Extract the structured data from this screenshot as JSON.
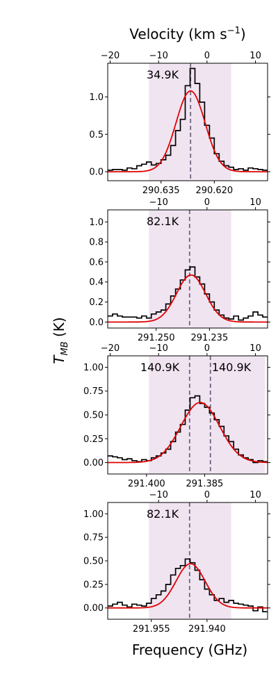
{
  "figure": {
    "top_axis_label": "Velocity (km s",
    "top_axis_sup": "−1",
    "top_axis_close": ")",
    "ylabel_main": "T",
    "ylabel_sub": "MB",
    "ylabel_unit": " (K)",
    "xlabel": "Frequency (GHz)"
  },
  "colors": {
    "shade": "#f1e4f1",
    "histogram": "#000000",
    "fit": "#e00000",
    "center_line": "#6e6680"
  },
  "chart_data": [
    {
      "type": "line",
      "panel": 1,
      "ylim": [
        -0.12,
        1.45
      ],
      "yticks": [
        0.0,
        0.5,
        1.0
      ],
      "ytick_labels": [
        "0.0",
        "0.5",
        "1.0"
      ],
      "vel_ticks": [
        -20,
        -10,
        0,
        10
      ],
      "vel_tick_labels": [
        "−20",
        "−10",
        "0",
        "10"
      ],
      "freq_ticks": [
        290.635,
        290.62
      ],
      "freq_tick_labels": [
        "290.635",
        "290.620"
      ],
      "shade_vel": [
        -12,
        5
      ],
      "center_vel": [
        -3.4
      ],
      "annotations": [
        "34.9K"
      ],
      "fit": {
        "amplitude": 1.08,
        "center": -3.4,
        "sigma": 3.0
      },
      "spectrum": {
        "vel": [
          -20,
          -19,
          -18,
          -17,
          -16,
          -15,
          -14,
          -13,
          -12,
          -11,
          -10,
          -9,
          -8,
          -7,
          -6,
          -5,
          -4,
          -3,
          -2,
          -1,
          0,
          1,
          2,
          3,
          4,
          5,
          6,
          7,
          8,
          9,
          10,
          11,
          12
        ],
        "T": [
          0.02,
          0.03,
          0.03,
          0.02,
          0.05,
          0.04,
          0.08,
          0.1,
          0.13,
          0.09,
          0.11,
          0.16,
          0.22,
          0.35,
          0.55,
          0.7,
          1.15,
          1.38,
          1.18,
          0.93,
          0.62,
          0.45,
          0.24,
          0.14,
          0.08,
          0.06,
          0.03,
          0.04,
          0.02,
          0.05,
          0.04,
          0.03,
          0.02
        ]
      }
    },
    {
      "type": "line",
      "panel": 2,
      "ylim": [
        -0.06,
        1.12
      ],
      "yticks": [
        0.0,
        0.2,
        0.4,
        0.6,
        0.8,
        1.0
      ],
      "ytick_labels": [
        "0.0",
        "0.2",
        "0.4",
        "0.6",
        "0.8",
        "1.0"
      ],
      "vel_ticks": [
        -10,
        0,
        10
      ],
      "vel_tick_labels": [
        "−10",
        "0",
        "10"
      ],
      "freq_ticks": [
        291.25,
        291.235
      ],
      "freq_tick_labels": [
        "291.250",
        "291.235"
      ],
      "shade_vel": [
        -12,
        5
      ],
      "center_vel": [
        -3.6
      ],
      "annotations": [
        "82.1K"
      ],
      "fit": {
        "amplitude": 0.47,
        "center": -3.3,
        "sigma": 3.0
      },
      "spectrum": {
        "vel": [
          -20,
          -19,
          -18,
          -17,
          -16,
          -15,
          -14,
          -13,
          -12,
          -11,
          -10,
          -9,
          -8,
          -7,
          -6,
          -5,
          -4,
          -3,
          -2,
          -1,
          0,
          1,
          2,
          3,
          4,
          5,
          6,
          7,
          8,
          9,
          10,
          11,
          12
        ],
        "T": [
          0.06,
          0.08,
          0.06,
          0.05,
          0.05,
          0.05,
          0.04,
          0.06,
          0.04,
          0.08,
          0.1,
          0.12,
          0.18,
          0.26,
          0.33,
          0.42,
          0.52,
          0.55,
          0.45,
          0.38,
          0.28,
          0.2,
          0.12,
          0.07,
          0.04,
          0.03,
          0.06,
          0.02,
          0.04,
          0.06,
          0.1,
          0.07,
          0.05
        ]
      }
    },
    {
      "type": "line",
      "panel": 3,
      "ylim": [
        -0.12,
        1.12
      ],
      "yticks": [
        0.0,
        0.25,
        0.5,
        0.75,
        1.0
      ],
      "ytick_labels": [
        "0.00",
        "0.25",
        "0.50",
        "0.75",
        "1.00"
      ],
      "vel_ticks": [
        -20,
        -10,
        0,
        10
      ],
      "vel_tick_labels": [
        "−20",
        "−10",
        "0",
        "10"
      ],
      "freq_ticks": [
        291.4,
        291.385
      ],
      "freq_tick_labels": [
        "291.400",
        "291.385"
      ],
      "shade_vel": [
        -12,
        12
      ],
      "center_vel": [
        -3.6,
        0.7
      ],
      "annotations": [
        "140.9K",
        "140.9K"
      ],
      "fit": {
        "amplitude": 0.63,
        "center": -1.4,
        "sigma": 4.0
      },
      "spectrum": {
        "vel": [
          -20,
          -19,
          -18,
          -17,
          -16,
          -15,
          -14,
          -13,
          -12,
          -11,
          -10,
          -9,
          -8,
          -7,
          -6,
          -5,
          -4,
          -3,
          -2,
          -1,
          0,
          1,
          2,
          3,
          4,
          5,
          6,
          7,
          8,
          9,
          10,
          11,
          12
        ],
        "T": [
          0.07,
          0.06,
          0.05,
          0.03,
          0.04,
          0.02,
          0.01,
          0.03,
          0.02,
          0.05,
          0.07,
          0.1,
          0.14,
          0.22,
          0.32,
          0.4,
          0.55,
          0.68,
          0.7,
          0.62,
          0.58,
          0.52,
          0.45,
          0.38,
          0.28,
          0.22,
          0.14,
          0.08,
          0.05,
          0.03,
          0.0,
          0.02,
          0.01
        ]
      }
    },
    {
      "type": "line",
      "panel": 4,
      "ylim": [
        -0.12,
        1.12
      ],
      "yticks": [
        0.0,
        0.25,
        0.5,
        0.75,
        1.0
      ],
      "ytick_labels": [
        "0.00",
        "0.25",
        "0.50",
        "0.75",
        "1.00"
      ],
      "vel_ticks": [
        -10,
        0,
        10
      ],
      "vel_tick_labels": [
        "−10",
        "0",
        "10"
      ],
      "freq_ticks": [
        291.955,
        291.94
      ],
      "freq_tick_labels": [
        "291.955",
        "291.940"
      ],
      "shade_vel": [
        -12,
        5
      ],
      "center_vel": [
        -3.6
      ],
      "annotations": [
        "82.1K"
      ],
      "fit": {
        "amplitude": 0.47,
        "center": -3.4,
        "sigma": 3.0
      },
      "spectrum": {
        "vel": [
          -20,
          -19,
          -18,
          -17,
          -16,
          -15,
          -14,
          -13,
          -12,
          -11,
          -10,
          -9,
          -8,
          -7,
          -6,
          -5,
          -4,
          -3,
          -2,
          -1,
          0,
          1,
          2,
          3,
          4,
          5,
          6,
          7,
          8,
          9,
          10,
          11,
          12
        ],
        "T": [
          0.02,
          0.04,
          0.06,
          0.03,
          0.01,
          0.04,
          0.03,
          0.02,
          0.05,
          0.1,
          0.14,
          0.18,
          0.25,
          0.35,
          0.42,
          0.45,
          0.52,
          0.48,
          0.4,
          0.3,
          0.2,
          0.14,
          0.08,
          0.1,
          0.06,
          0.08,
          0.05,
          0.04,
          0.03,
          0.02,
          -0.03,
          0.01,
          -0.04
        ]
      }
    }
  ]
}
